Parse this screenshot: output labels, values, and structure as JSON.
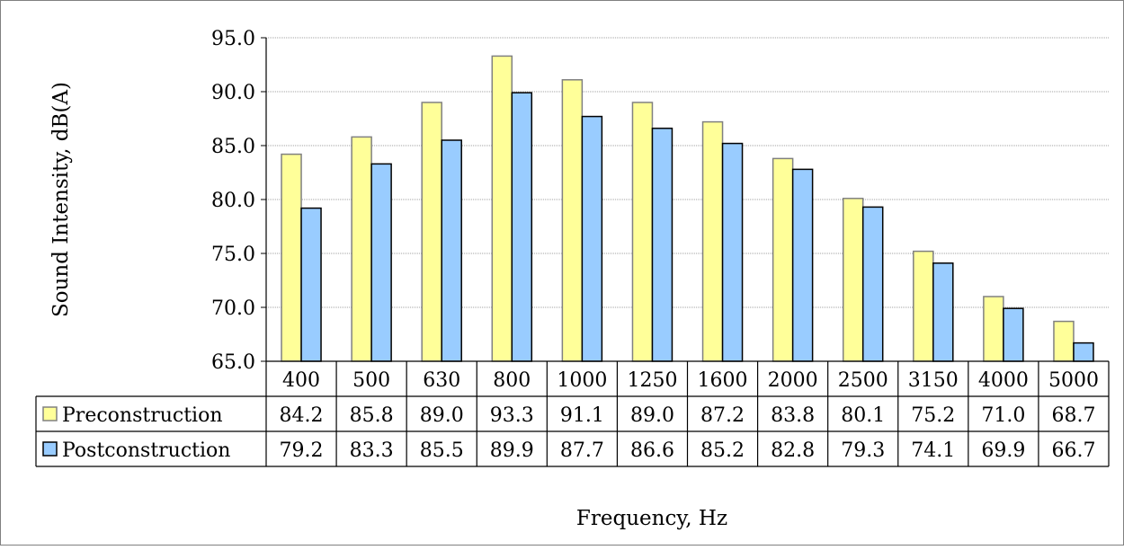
{
  "chart_data": {
    "type": "bar",
    "title": "",
    "ylabel": "Sound Intensity, dB(A)",
    "xlabel": "Frequency, Hz",
    "categories": [
      "400",
      "500",
      "630",
      "800",
      "1000",
      "1250",
      "1600",
      "2000",
      "2500",
      "3150",
      "4000",
      "5000"
    ],
    "series": [
      {
        "name": "Preconstruction",
        "values": [
          84.2,
          85.8,
          89.0,
          93.3,
          91.1,
          89.0,
          87.2,
          83.8,
          80.1,
          75.2,
          71.0,
          68.7
        ],
        "labels": [
          "84.2",
          "85.8",
          "89.0",
          "93.3",
          "91.1",
          "89.0",
          "87.2",
          "83.8",
          "80.1",
          "75.2",
          "71.0",
          "68.7"
        ]
      },
      {
        "name": "Postconstruction",
        "values": [
          79.2,
          83.3,
          85.5,
          89.9,
          87.7,
          86.6,
          85.2,
          82.8,
          79.3,
          74.1,
          69.9,
          66.7
        ],
        "labels": [
          "79.2",
          "83.3",
          "85.5",
          "89.9",
          "87.7",
          "86.6",
          "85.2",
          "82.8",
          "79.3",
          "74.1",
          "69.9",
          "66.7"
        ]
      }
    ],
    "ylim": [
      65.0,
      95.0
    ],
    "yticks": [
      "65.0",
      "70.0",
      "75.0",
      "80.0",
      "85.0",
      "90.0",
      "95.0"
    ],
    "grid": true,
    "legend": "data table",
    "colors": {
      "Preconstruction": "#ffff99",
      "Postconstruction": "#99ccff",
      "pre_edge": "#808080",
      "post_edge": "#000000"
    }
  }
}
